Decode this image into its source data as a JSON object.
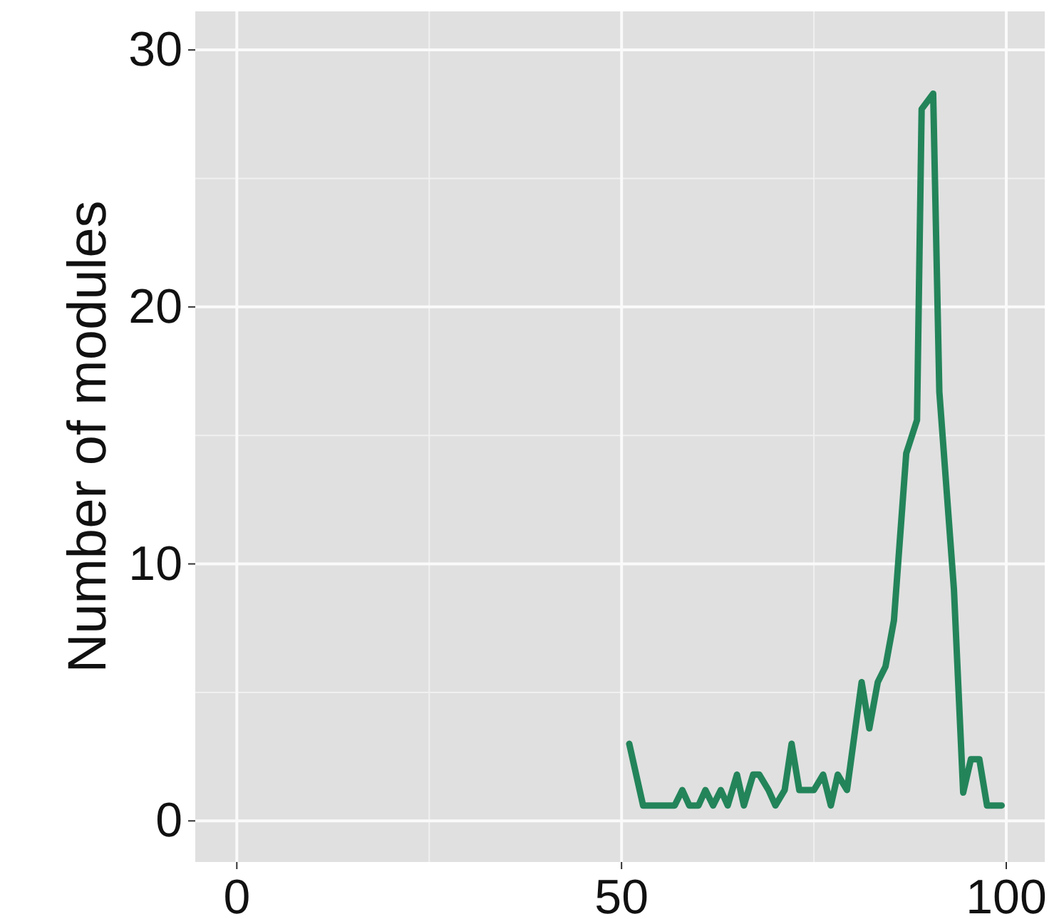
{
  "chart_data": {
    "type": "line",
    "ylabel": "Number of modules",
    "xlim": [
      -5.4,
      105
    ],
    "ylim": [
      -1.6,
      31.5
    ],
    "xticks": [
      0,
      50,
      100
    ],
    "yticks": [
      0,
      10,
      20,
      30
    ],
    "grid": true,
    "marker": "none",
    "line_style": "solid",
    "series": [
      {
        "color": "#23845a",
        "x": [
          51,
          52.8,
          56.9,
          57.9,
          58.8,
          60,
          60.9,
          61.9,
          62.9,
          63.8,
          65,
          65.9,
          67.1,
          67.9,
          69.1,
          70,
          71.2,
          72.1,
          73.1,
          75,
          76.2,
          77.2,
          78.1,
          79.3,
          81.2,
          82.2,
          83.3,
          84.3,
          85.4,
          87,
          88.4,
          89,
          90.5,
          91.3,
          93.2,
          94.4,
          95.4,
          96.5,
          97.5,
          99.4
        ],
        "values": [
          3,
          0.6,
          0.6,
          1.2,
          0.6,
          0.6,
          1.2,
          0.6,
          1.2,
          0.6,
          1.8,
          0.6,
          1.8,
          1.8,
          1.2,
          0.6,
          1.2,
          3,
          1.2,
          1.2,
          1.8,
          0.6,
          1.8,
          1.2,
          5.4,
          3.6,
          5.4,
          6,
          7.8,
          14.3,
          15.6,
          27.7,
          28.3,
          16.7,
          9,
          1.1,
          2.4,
          2.4,
          0.6,
          0.6
        ]
      }
    ]
  }
}
